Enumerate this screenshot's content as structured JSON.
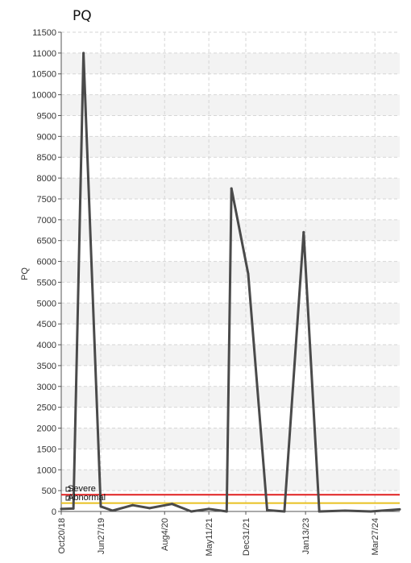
{
  "chart_data": {
    "type": "line",
    "title": "PQ",
    "ylabel": "PQ",
    "xlabel": "",
    "ylim": [
      0,
      11500
    ],
    "yticks": [
      0,
      500,
      1000,
      1500,
      2000,
      2500,
      3000,
      3500,
      4000,
      4500,
      5000,
      5500,
      6000,
      6500,
      7000,
      7500,
      8000,
      8500,
      9000,
      9500,
      10000,
      10500,
      11000,
      11500
    ],
    "xlim": [
      "2018-10-20",
      "2024-08-31"
    ],
    "x_ticks": [
      {
        "date": "2018-10-20",
        "label": "Oct20/18"
      },
      {
        "date": "2019-06-27",
        "label": "Jun27/19"
      },
      {
        "date": "2020-08-04",
        "label": "Aug4/20"
      },
      {
        "date": "2021-05-11",
        "label": "May11/21"
      },
      {
        "date": "2021-12-31",
        "label": "Dec31/21"
      },
      {
        "date": "2023-01-13",
        "label": "Jan13/23"
      },
      {
        "date": "2024-03-27",
        "label": "Mar27/24"
      }
    ],
    "grid": true,
    "line_color": "#4a4a4a",
    "series": [
      {
        "points": [
          {
            "x": "2018-10-20",
            "y": 60
          },
          {
            "x": "2019-01-05",
            "y": 70
          },
          {
            "x": "2019-03-10",
            "y": 11000
          },
          {
            "x": "2019-06-27",
            "y": 120
          },
          {
            "x": "2019-09-10",
            "y": 20
          },
          {
            "x": "2020-01-15",
            "y": 150
          },
          {
            "x": "2020-05-01",
            "y": 80
          },
          {
            "x": "2020-09-20",
            "y": 180
          },
          {
            "x": "2021-01-20",
            "y": 0
          },
          {
            "x": "2021-05-11",
            "y": 60
          },
          {
            "x": "2021-09-01",
            "y": 0
          },
          {
            "x": "2021-10-01",
            "y": 7750
          },
          {
            "x": "2022-01-15",
            "y": 5700
          },
          {
            "x": "2022-05-15",
            "y": 30
          },
          {
            "x": "2022-09-01",
            "y": 0
          },
          {
            "x": "2023-01-01",
            "y": 6700
          },
          {
            "x": "2023-04-10",
            "y": 0
          },
          {
            "x": "2023-09-20",
            "y": 20
          },
          {
            "x": "2024-03-01",
            "y": 0
          },
          {
            "x": "2024-08-31",
            "y": 50
          }
        ]
      }
    ],
    "reference_lines": [
      {
        "name": "Severe",
        "y": 400,
        "color": "#e02020"
      },
      {
        "name": "Abnormal",
        "y": 200,
        "color": "#e8c020"
      }
    ]
  }
}
